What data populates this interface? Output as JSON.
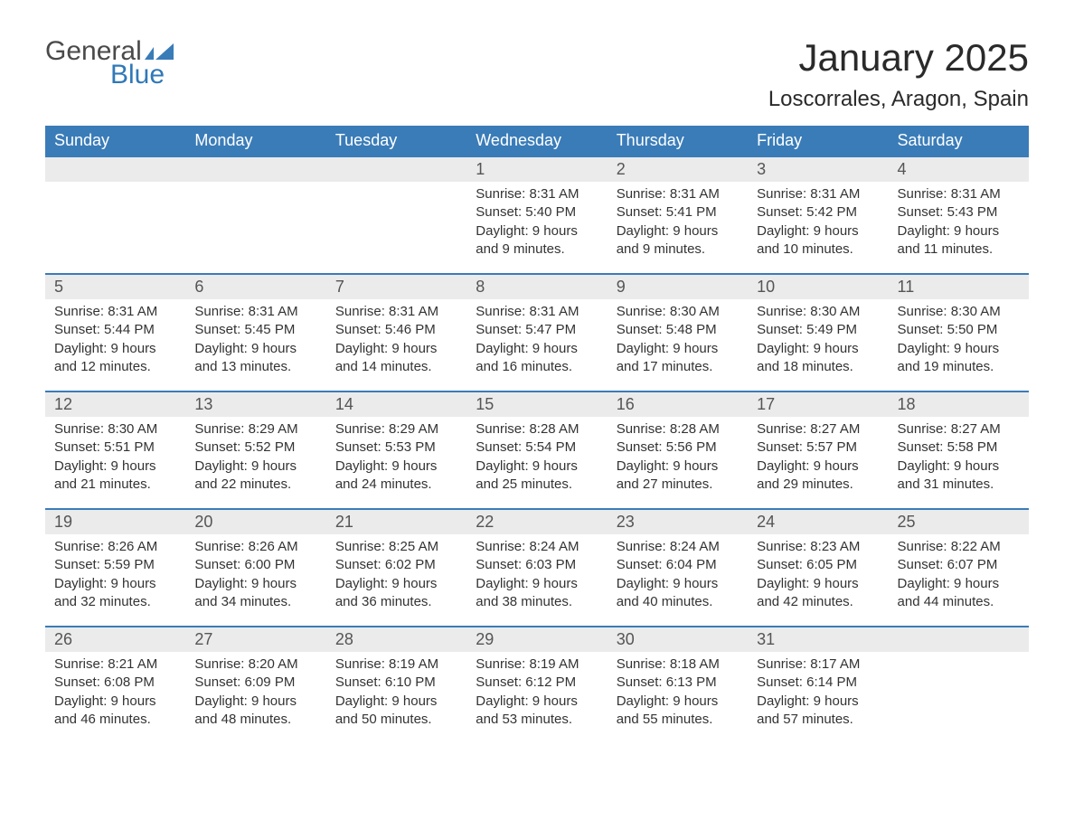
{
  "logo": {
    "general": "General",
    "blue": "Blue",
    "shape_color": "#3a7cb8"
  },
  "title": "January 2025",
  "location": "Loscorrales, Aragon, Spain",
  "colors": {
    "header_bg": "#3a7cb8",
    "header_text": "#ffffff",
    "daynum_bg": "#ebebeb",
    "daynum_text": "#555555",
    "body_text": "#333333",
    "row_border": "#3a7cb8",
    "page_bg": "#ffffff",
    "logo_general": "#4a4a4a",
    "logo_blue": "#3178b8"
  },
  "typography": {
    "title_fontsize": 42,
    "location_fontsize": 24,
    "header_fontsize": 18,
    "daynum_fontsize": 18,
    "content_fontsize": 15,
    "logo_fontsize": 30
  },
  "day_names": [
    "Sunday",
    "Monday",
    "Tuesday",
    "Wednesday",
    "Thursday",
    "Friday",
    "Saturday"
  ],
  "weeks": [
    [
      null,
      null,
      null,
      {
        "num": "1",
        "sunrise": "Sunrise: 8:31 AM",
        "sunset": "Sunset: 5:40 PM",
        "daylight1": "Daylight: 9 hours",
        "daylight2": "and 9 minutes."
      },
      {
        "num": "2",
        "sunrise": "Sunrise: 8:31 AM",
        "sunset": "Sunset: 5:41 PM",
        "daylight1": "Daylight: 9 hours",
        "daylight2": "and 9 minutes."
      },
      {
        "num": "3",
        "sunrise": "Sunrise: 8:31 AM",
        "sunset": "Sunset: 5:42 PM",
        "daylight1": "Daylight: 9 hours",
        "daylight2": "and 10 minutes."
      },
      {
        "num": "4",
        "sunrise": "Sunrise: 8:31 AM",
        "sunset": "Sunset: 5:43 PM",
        "daylight1": "Daylight: 9 hours",
        "daylight2": "and 11 minutes."
      }
    ],
    [
      {
        "num": "5",
        "sunrise": "Sunrise: 8:31 AM",
        "sunset": "Sunset: 5:44 PM",
        "daylight1": "Daylight: 9 hours",
        "daylight2": "and 12 minutes."
      },
      {
        "num": "6",
        "sunrise": "Sunrise: 8:31 AM",
        "sunset": "Sunset: 5:45 PM",
        "daylight1": "Daylight: 9 hours",
        "daylight2": "and 13 minutes."
      },
      {
        "num": "7",
        "sunrise": "Sunrise: 8:31 AM",
        "sunset": "Sunset: 5:46 PM",
        "daylight1": "Daylight: 9 hours",
        "daylight2": "and 14 minutes."
      },
      {
        "num": "8",
        "sunrise": "Sunrise: 8:31 AM",
        "sunset": "Sunset: 5:47 PM",
        "daylight1": "Daylight: 9 hours",
        "daylight2": "and 16 minutes."
      },
      {
        "num": "9",
        "sunrise": "Sunrise: 8:30 AM",
        "sunset": "Sunset: 5:48 PM",
        "daylight1": "Daylight: 9 hours",
        "daylight2": "and 17 minutes."
      },
      {
        "num": "10",
        "sunrise": "Sunrise: 8:30 AM",
        "sunset": "Sunset: 5:49 PM",
        "daylight1": "Daylight: 9 hours",
        "daylight2": "and 18 minutes."
      },
      {
        "num": "11",
        "sunrise": "Sunrise: 8:30 AM",
        "sunset": "Sunset: 5:50 PM",
        "daylight1": "Daylight: 9 hours",
        "daylight2": "and 19 minutes."
      }
    ],
    [
      {
        "num": "12",
        "sunrise": "Sunrise: 8:30 AM",
        "sunset": "Sunset: 5:51 PM",
        "daylight1": "Daylight: 9 hours",
        "daylight2": "and 21 minutes."
      },
      {
        "num": "13",
        "sunrise": "Sunrise: 8:29 AM",
        "sunset": "Sunset: 5:52 PM",
        "daylight1": "Daylight: 9 hours",
        "daylight2": "and 22 minutes."
      },
      {
        "num": "14",
        "sunrise": "Sunrise: 8:29 AM",
        "sunset": "Sunset: 5:53 PM",
        "daylight1": "Daylight: 9 hours",
        "daylight2": "and 24 minutes."
      },
      {
        "num": "15",
        "sunrise": "Sunrise: 8:28 AM",
        "sunset": "Sunset: 5:54 PM",
        "daylight1": "Daylight: 9 hours",
        "daylight2": "and 25 minutes."
      },
      {
        "num": "16",
        "sunrise": "Sunrise: 8:28 AM",
        "sunset": "Sunset: 5:56 PM",
        "daylight1": "Daylight: 9 hours",
        "daylight2": "and 27 minutes."
      },
      {
        "num": "17",
        "sunrise": "Sunrise: 8:27 AM",
        "sunset": "Sunset: 5:57 PM",
        "daylight1": "Daylight: 9 hours",
        "daylight2": "and 29 minutes."
      },
      {
        "num": "18",
        "sunrise": "Sunrise: 8:27 AM",
        "sunset": "Sunset: 5:58 PM",
        "daylight1": "Daylight: 9 hours",
        "daylight2": "and 31 minutes."
      }
    ],
    [
      {
        "num": "19",
        "sunrise": "Sunrise: 8:26 AM",
        "sunset": "Sunset: 5:59 PM",
        "daylight1": "Daylight: 9 hours",
        "daylight2": "and 32 minutes."
      },
      {
        "num": "20",
        "sunrise": "Sunrise: 8:26 AM",
        "sunset": "Sunset: 6:00 PM",
        "daylight1": "Daylight: 9 hours",
        "daylight2": "and 34 minutes."
      },
      {
        "num": "21",
        "sunrise": "Sunrise: 8:25 AM",
        "sunset": "Sunset: 6:02 PM",
        "daylight1": "Daylight: 9 hours",
        "daylight2": "and 36 minutes."
      },
      {
        "num": "22",
        "sunrise": "Sunrise: 8:24 AM",
        "sunset": "Sunset: 6:03 PM",
        "daylight1": "Daylight: 9 hours",
        "daylight2": "and 38 minutes."
      },
      {
        "num": "23",
        "sunrise": "Sunrise: 8:24 AM",
        "sunset": "Sunset: 6:04 PM",
        "daylight1": "Daylight: 9 hours",
        "daylight2": "and 40 minutes."
      },
      {
        "num": "24",
        "sunrise": "Sunrise: 8:23 AM",
        "sunset": "Sunset: 6:05 PM",
        "daylight1": "Daylight: 9 hours",
        "daylight2": "and 42 minutes."
      },
      {
        "num": "25",
        "sunrise": "Sunrise: 8:22 AM",
        "sunset": "Sunset: 6:07 PM",
        "daylight1": "Daylight: 9 hours",
        "daylight2": "and 44 minutes."
      }
    ],
    [
      {
        "num": "26",
        "sunrise": "Sunrise: 8:21 AM",
        "sunset": "Sunset: 6:08 PM",
        "daylight1": "Daylight: 9 hours",
        "daylight2": "and 46 minutes."
      },
      {
        "num": "27",
        "sunrise": "Sunrise: 8:20 AM",
        "sunset": "Sunset: 6:09 PM",
        "daylight1": "Daylight: 9 hours",
        "daylight2": "and 48 minutes."
      },
      {
        "num": "28",
        "sunrise": "Sunrise: 8:19 AM",
        "sunset": "Sunset: 6:10 PM",
        "daylight1": "Daylight: 9 hours",
        "daylight2": "and 50 minutes."
      },
      {
        "num": "29",
        "sunrise": "Sunrise: 8:19 AM",
        "sunset": "Sunset: 6:12 PM",
        "daylight1": "Daylight: 9 hours",
        "daylight2": "and 53 minutes."
      },
      {
        "num": "30",
        "sunrise": "Sunrise: 8:18 AM",
        "sunset": "Sunset: 6:13 PM",
        "daylight1": "Daylight: 9 hours",
        "daylight2": "and 55 minutes."
      },
      {
        "num": "31",
        "sunrise": "Sunrise: 8:17 AM",
        "sunset": "Sunset: 6:14 PM",
        "daylight1": "Daylight: 9 hours",
        "daylight2": "and 57 minutes."
      },
      null
    ]
  ]
}
